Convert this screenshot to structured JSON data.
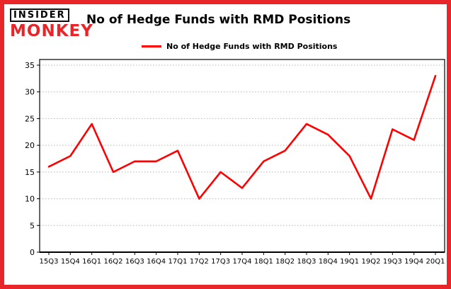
{
  "brand": {
    "logo_line1": "INSIDER",
    "logo_line2": "MONKEY"
  },
  "header": {
    "title": "No of Hedge Funds with RMD Positions"
  },
  "legend": {
    "label": "No of Hedge Funds with RMD Positions"
  },
  "colors": {
    "frame_red": "#e8262a",
    "line_red": "#ff0000",
    "grid_gray": "#b5b5b5"
  },
  "chart_data": {
    "type": "line",
    "title": "No of Hedge Funds with RMD Positions",
    "categories": [
      "15Q3",
      "15Q4",
      "16Q1",
      "16Q2",
      "16Q3",
      "16Q4",
      "17Q1",
      "17Q2",
      "17Q3",
      "17Q4",
      "18Q1",
      "18Q2",
      "18Q3",
      "18Q4",
      "19Q1",
      "19Q2",
      "19Q3",
      "19Q4",
      "20Q1"
    ],
    "values": [
      16,
      18,
      24,
      15,
      17,
      17,
      19,
      10,
      15,
      12,
      17,
      19,
      24,
      22,
      18,
      10,
      23,
      21,
      33
    ],
    "xlabel": "",
    "ylabel": "",
    "ylim": [
      0,
      35
    ],
    "yticks": [
      0,
      5,
      10,
      15,
      20,
      25,
      30,
      35
    ],
    "grid": true,
    "legend_position": "top",
    "line_color": "#ff0000"
  }
}
